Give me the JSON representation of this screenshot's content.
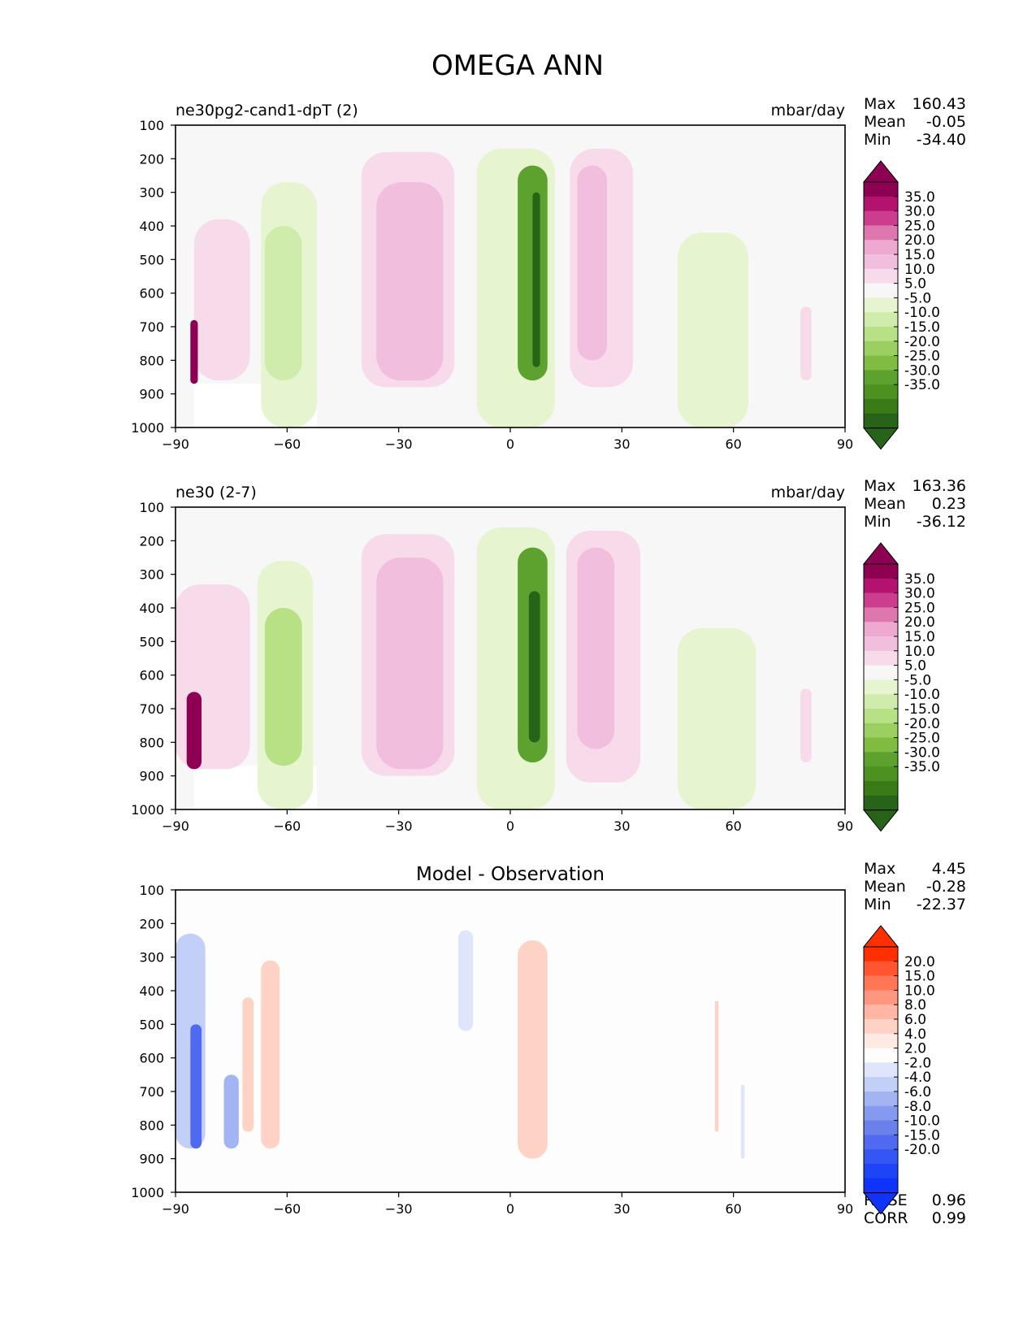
{
  "figure": {
    "title": "OMEGA ANN"
  },
  "chart_data": [
    {
      "type": "heatmap",
      "title": "ne30pg2-cand1-dpT (2)",
      "units": "mbar/day",
      "xlim": [
        -90,
        90
      ],
      "ylim": [
        1000,
        100
      ],
      "xticks": [
        "−90",
        "−60",
        "−30",
        "0",
        "30",
        "60",
        "90"
      ],
      "yticks": [
        "100",
        "200",
        "300",
        "400",
        "500",
        "600",
        "700",
        "800",
        "900",
        "1000"
      ],
      "stats": [
        {
          "label": "Max",
          "value": "160.43"
        },
        {
          "label": "Mean",
          "value": "-0.05"
        },
        {
          "label": "Min",
          "value": "-34.40"
        }
      ],
      "colorbar": {
        "labels": [
          "35.0",
          "30.0",
          "25.0",
          "20.0",
          "15.0",
          "10.0",
          "5.0",
          "-5.0",
          "-10.0",
          "-15.0",
          "-20.0",
          "-25.0",
          "-30.0",
          "-35.0"
        ],
        "colors": [
          "#8e0152",
          "#b3136f",
          "#cd3d8e",
          "#de77ae",
          "#eda9d0",
          "#f1bedd",
          "#f8dbeb",
          "#f7f7f7",
          "#e6f5d0",
          "#d0ecad",
          "#b8e186",
          "#9ccf62",
          "#7fbc41",
          "#5da12f",
          "#4d9221",
          "#3a7b17",
          "#276419"
        ],
        "extend_low_color": "#276419",
        "extend_high_color": "#8e0152"
      },
      "background_color": "#f7f7f7",
      "contours": [
        {
          "feature": "masked-terrain",
          "lon": [
            -85,
            -52
          ],
          "plev": [
            870,
            1000
          ],
          "color": "#ffffff"
        },
        {
          "feature": "southern-descent-wave",
          "lon": [
            -85,
            -70
          ],
          "plev": [
            380,
            860
          ],
          "color": "#f8dbeb"
        },
        {
          "feature": "polar-strong-descent",
          "lon": [
            -86,
            -84
          ],
          "plev": [
            680,
            870
          ],
          "color": "#8e0152"
        },
        {
          "feature": "sh-midlat-ascent",
          "lon": [
            -67,
            -52
          ],
          "plev": [
            270,
            1000
          ],
          "color": "#e6f5d0"
        },
        {
          "feature": "sh-midlat-ascent-core",
          "lon": [
            -66,
            -56
          ],
          "plev": [
            400,
            860
          ],
          "color": "#d0ecad"
        },
        {
          "feature": "sh-subtropical-descent",
          "lon": [
            -40,
            -15
          ],
          "plev": [
            180,
            880
          ],
          "color": "#f8dbeb"
        },
        {
          "feature": "sh-subtropical-descent-core",
          "lon": [
            -36,
            -18
          ],
          "plev": [
            270,
            860
          ],
          "color": "#f1bedd"
        },
        {
          "feature": "itcz-ascent-outer",
          "lon": [
            -9,
            12
          ],
          "plev": [
            170,
            1000
          ],
          "color": "#e6f5d0"
        },
        {
          "feature": "itcz-ascent-core",
          "lon": [
            2,
            10
          ],
          "plev": [
            220,
            860
          ],
          "color": "#5da12f"
        },
        {
          "feature": "itcz-ascent-peak",
          "lon": [
            6,
            8
          ],
          "plev": [
            300,
            820
          ],
          "color": "#276419"
        },
        {
          "feature": "nh-subtropical-descent",
          "lon": [
            16,
            33
          ],
          "plev": [
            170,
            880
          ],
          "color": "#f8dbeb"
        },
        {
          "feature": "nh-subtropical-descent-core",
          "lon": [
            18,
            26
          ],
          "plev": [
            220,
            800
          ],
          "color": "#f1bedd"
        },
        {
          "feature": "nh-midlat-ascent",
          "lon": [
            45,
            64
          ],
          "plev": [
            420,
            1000
          ],
          "color": "#e6f5d0"
        },
        {
          "feature": "nh-polar-descent",
          "lon": [
            78,
            81
          ],
          "plev": [
            640,
            860
          ],
          "color": "#f8dbeb"
        }
      ]
    },
    {
      "type": "heatmap",
      "title": "ne30 (2-7)",
      "units": "mbar/day",
      "xlim": [
        -90,
        90
      ],
      "ylim": [
        1000,
        100
      ],
      "xticks": [
        "−90",
        "−60",
        "−30",
        "0",
        "30",
        "60",
        "90"
      ],
      "yticks": [
        "100",
        "200",
        "300",
        "400",
        "500",
        "600",
        "700",
        "800",
        "900",
        "1000"
      ],
      "stats": [
        {
          "label": "Max",
          "value": "163.36"
        },
        {
          "label": "Mean",
          "value": "0.23"
        },
        {
          "label": "Min",
          "value": "-36.12"
        }
      ],
      "colorbar": {
        "labels": [
          "35.0",
          "30.0",
          "25.0",
          "20.0",
          "15.0",
          "10.0",
          "5.0",
          "-5.0",
          "-10.0",
          "-15.0",
          "-20.0",
          "-25.0",
          "-30.0",
          "-35.0"
        ],
        "colors": [
          "#8e0152",
          "#b3136f",
          "#cd3d8e",
          "#de77ae",
          "#eda9d0",
          "#f1bedd",
          "#f8dbeb",
          "#f7f7f7",
          "#e6f5d0",
          "#d0ecad",
          "#b8e186",
          "#9ccf62",
          "#7fbc41",
          "#5da12f",
          "#4d9221",
          "#3a7b17",
          "#276419"
        ],
        "extend_low_color": "#276419",
        "extend_high_color": "#8e0152"
      },
      "background_color": "#f7f7f7",
      "contours": [
        {
          "feature": "masked-terrain",
          "lon": [
            -85,
            -52
          ],
          "plev": [
            870,
            1000
          ],
          "color": "#ffffff"
        },
        {
          "feature": "southern-descent-wave",
          "lon": [
            -90,
            -70
          ],
          "plev": [
            330,
            880
          ],
          "color": "#f8dbeb"
        },
        {
          "feature": "polar-strong-descent",
          "lon": [
            -87,
            -83
          ],
          "plev": [
            650,
            880
          ],
          "color": "#8e0152"
        },
        {
          "feature": "sh-midlat-ascent",
          "lon": [
            -68,
            -53
          ],
          "plev": [
            260,
            1000
          ],
          "color": "#e6f5d0"
        },
        {
          "feature": "sh-midlat-ascent-core",
          "lon": [
            -66,
            -56
          ],
          "plev": [
            400,
            870
          ],
          "color": "#b8e186"
        },
        {
          "feature": "sh-subtropical-descent",
          "lon": [
            -40,
            -15
          ],
          "plev": [
            180,
            900
          ],
          "color": "#f8dbeb"
        },
        {
          "feature": "sh-subtropical-descent-core",
          "lon": [
            -36,
            -18
          ],
          "plev": [
            250,
            880
          ],
          "color": "#f1bedd"
        },
        {
          "feature": "itcz-ascent-outer",
          "lon": [
            -9,
            12
          ],
          "plev": [
            160,
            1000
          ],
          "color": "#e6f5d0"
        },
        {
          "feature": "itcz-ascent-core",
          "lon": [
            2,
            10
          ],
          "plev": [
            220,
            860
          ],
          "color": "#5da12f"
        },
        {
          "feature": "itcz-ascent-peak",
          "lon": [
            5,
            8
          ],
          "plev": [
            350,
            800
          ],
          "color": "#276419"
        },
        {
          "feature": "nh-subtropical-descent",
          "lon": [
            15,
            35
          ],
          "plev": [
            170,
            920
          ],
          "color": "#f8dbeb"
        },
        {
          "feature": "nh-subtropical-descent-core",
          "lon": [
            18,
            28
          ],
          "plev": [
            220,
            820
          ],
          "color": "#f1bedd"
        },
        {
          "feature": "nh-midlat-ascent",
          "lon": [
            45,
            66
          ],
          "plev": [
            460,
            1000
          ],
          "color": "#e6f5d0"
        },
        {
          "feature": "nh-polar-descent",
          "lon": [
            78,
            81
          ],
          "plev": [
            640,
            860
          ],
          "color": "#f8dbeb"
        }
      ]
    },
    {
      "type": "heatmap",
      "title": "Model - Observation",
      "units": "",
      "xlim": [
        -90,
        90
      ],
      "ylim": [
        1000,
        100
      ],
      "xticks": [
        "−90",
        "−60",
        "−30",
        "0",
        "30",
        "60",
        "90"
      ],
      "yticks": [
        "100",
        "200",
        "300",
        "400",
        "500",
        "600",
        "700",
        "800",
        "900",
        "1000"
      ],
      "stats": [
        {
          "label": "Max",
          "value": "4.45"
        },
        {
          "label": "Mean",
          "value": "-0.28"
        },
        {
          "label": "Min",
          "value": "-22.37"
        }
      ],
      "footer_stats": [
        {
          "label": "RMSE",
          "value": "0.96"
        },
        {
          "label": "CORR",
          "value": "0.99"
        }
      ],
      "colorbar": {
        "labels": [
          "20.0",
          "15.0",
          "10.0",
          "8.0",
          "6.0",
          "4.0",
          "2.0",
          "-2.0",
          "-4.0",
          "-6.0",
          "-8.0",
          "-10.0",
          "-15.0",
          "-20.0"
        ],
        "colors": [
          "#ff3000",
          "#ff5530",
          "#ff7755",
          "#ff9680",
          "#ffb6a5",
          "#ffd2c6",
          "#ffe9e3",
          "#fdfdfd",
          "#dfe6fb",
          "#c2cff7",
          "#a3b4f2",
          "#8599ee",
          "#6a81eb",
          "#4f6af0",
          "#3456f3",
          "#1f44f6",
          "#0f33f8"
        ],
        "extend_low_color": "#0f33f8",
        "extend_high_color": "#ff3000"
      },
      "background_color": "#fdfdfd",
      "contours": [
        {
          "feature": "sh-polar-negative",
          "lon": [
            -90,
            -82
          ],
          "plev": [
            230,
            870
          ],
          "color": "#c2cff7"
        },
        {
          "feature": "sh-polar-negative-core",
          "lon": [
            -86,
            -83
          ],
          "plev": [
            500,
            870
          ],
          "color": "#4f6af0"
        },
        {
          "feature": "sh-wave-negative",
          "lon": [
            -77,
            -73
          ],
          "plev": [
            650,
            870
          ],
          "color": "#a3b4f2"
        },
        {
          "feature": "sh-midlat-positive-a",
          "lon": [
            -72,
            -69
          ],
          "plev": [
            420,
            820
          ],
          "color": "#ffd2c6"
        },
        {
          "feature": "sh-midlat-positive-b",
          "lon": [
            -67,
            -62
          ],
          "plev": [
            310,
            870
          ],
          "color": "#ffd2c6"
        },
        {
          "feature": "tropical-negative",
          "lon": [
            -14,
            -10
          ],
          "plev": [
            220,
            520
          ],
          "color": "#dfe6fb"
        },
        {
          "feature": "tropical-positive",
          "lon": [
            2,
            10
          ],
          "plev": [
            250,
            900
          ],
          "color": "#ffd2c6"
        },
        {
          "feature": "nh-positive-narrow",
          "lon": [
            55,
            56
          ],
          "plev": [
            430,
            820
          ],
          "color": "#ffd2c6"
        },
        {
          "feature": "nh-negative-narrow",
          "lon": [
            62,
            63
          ],
          "plev": [
            680,
            900
          ],
          "color": "#dfe6fb"
        }
      ]
    }
  ]
}
